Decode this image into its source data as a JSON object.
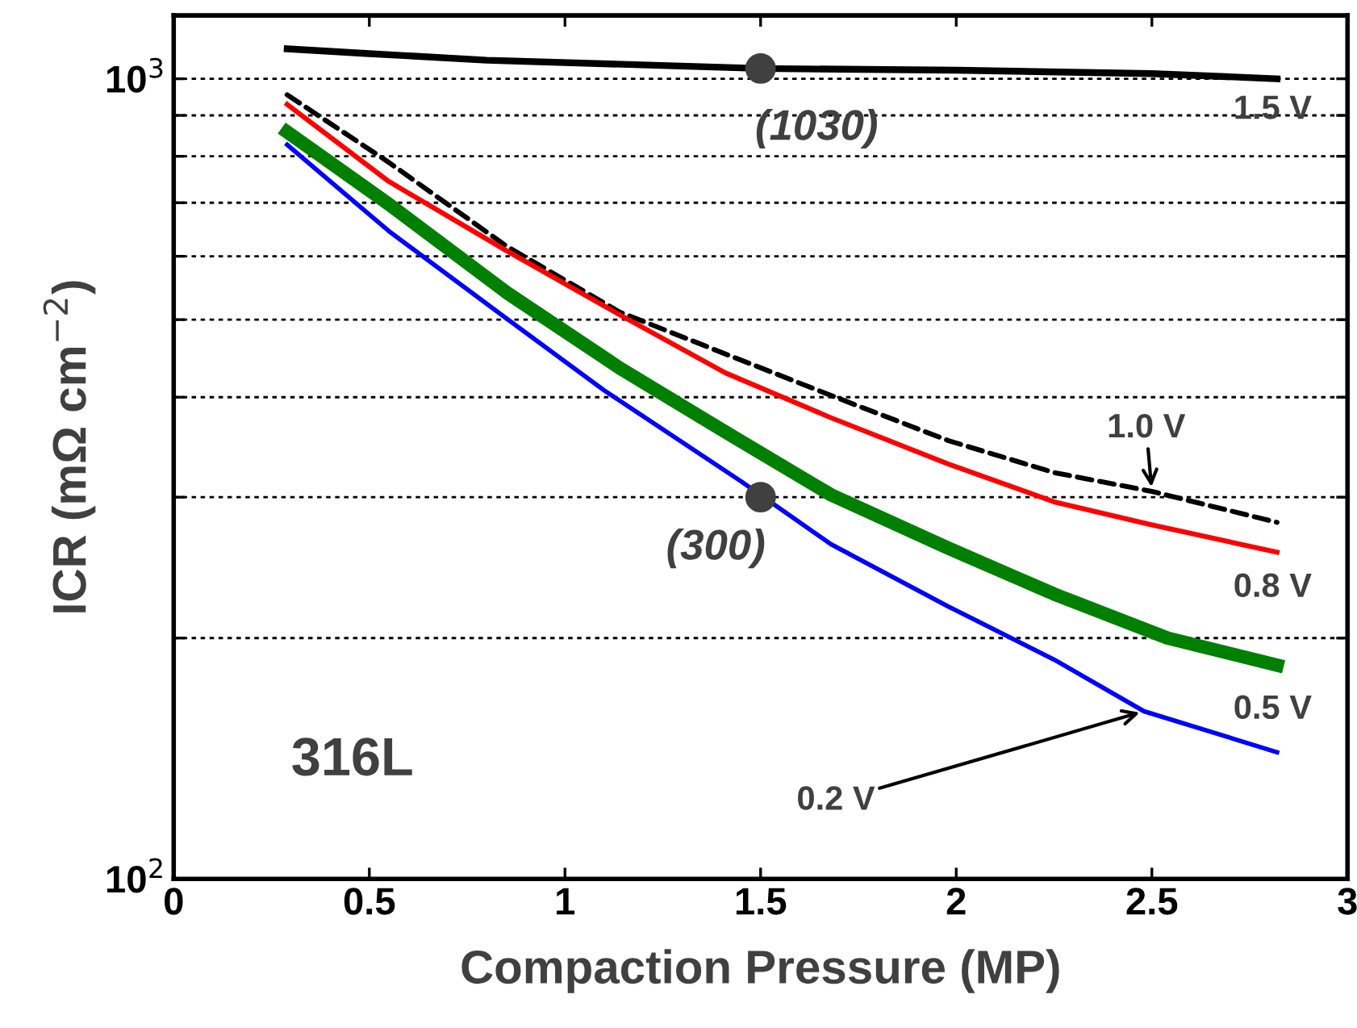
{
  "chart_data": {
    "type": "line",
    "xlabel": "Compaction Pressure (MP)",
    "ylabel": "ICR (mΩ cm$^{−2}$)",
    "log": "y",
    "grid": "y",
    "xlim": [
      0,
      3
    ],
    "xticks": [
      0,
      0.5,
      1,
      1.5,
      2,
      2.5,
      3
    ],
    "ylim": [
      100,
      1200
    ],
    "yticks": [
      {
        "value": 100,
        "label": "10$^{2}$"
      },
      {
        "value": 200,
        "label": null
      },
      {
        "value": 300,
        "label": null
      },
      {
        "value": 400,
        "label": null
      },
      {
        "value": 500,
        "label": null
      },
      {
        "value": 600,
        "label": null
      },
      {
        "value": 700,
        "label": null
      },
      {
        "value": 800,
        "label": null
      },
      {
        "value": 900,
        "label": null
      },
      {
        "value": 1000,
        "label": "10$^{3}$"
      }
    ],
    "series": [
      {
        "name": "1.5 V",
        "color": "#000000",
        "line_style": "solid",
        "x": [
          0.29,
          0.5,
          0.8,
          1.5,
          2,
          2.5,
          2.82
        ],
        "values": [
          1090,
          1075,
          1055,
          1030,
          1025,
          1015,
          1000
        ]
      },
      {
        "name": "1.0 V",
        "color": "#000000",
        "line_style": "dashed",
        "x": [
          0.29,
          0.55,
          0.85,
          1.14,
          1.43,
          1.68,
          1.98,
          2.25,
          2.5,
          2.82
        ],
        "values": [
          955,
          786,
          618,
          511,
          449,
          402,
          353,
          322,
          305,
          279
        ]
      },
      {
        "name": "0.8 V",
        "color": "#ff0000",
        "line_style": "solid",
        "x": [
          0.29,
          0.55,
          0.85,
          1.14,
          1.41,
          1.68,
          1.98,
          2.25,
          2.5,
          2.82
        ],
        "values": [
          929,
          744,
          610,
          507,
          429,
          377,
          330,
          296,
          277,
          256
        ]
      },
      {
        "name": "0.5 V",
        "color": "#008000",
        "line_style": "solid",
        "x": [
          0.29,
          0.55,
          0.85,
          1.14,
          1.43,
          1.68,
          1.98,
          2.25,
          2.54,
          2.82
        ],
        "values": [
          858,
          697,
          541,
          435,
          357,
          302,
          259,
          227,
          200,
          185
        ]
      },
      {
        "name": "0.2 V",
        "color": "#0000ff",
        "line_style": "solid",
        "x": [
          0.29,
          0.55,
          0.85,
          1.1,
          1.45,
          1.68,
          1.98,
          2.25,
          2.48,
          2.82
        ],
        "values": [
          827,
          645,
          502,
          408,
          314,
          262,
          219,
          188,
          162,
          144
        ]
      },
      {
        "type": "scatter",
        "color": "#404040",
        "marker": "circle",
        "x": [
          1.5,
          1.5
        ],
        "values": [
          1030,
          300
        ]
      }
    ],
    "annotations": [
      {
        "text": "(1030)",
        "x": 1.5,
        "y": 1030
      },
      {
        "text": "(300)",
        "x": 1.5,
        "y": 300
      },
      "316L"
    ]
  }
}
